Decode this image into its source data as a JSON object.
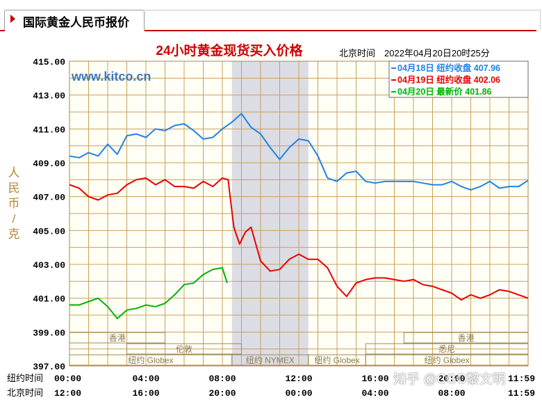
{
  "tab": {
    "title": "国际黄金人民币报价"
  },
  "watermark": "知乎 @CGC黎文明",
  "chart_data": {
    "type": "line",
    "title": "24小时黄金现货买入价格",
    "timestamp": "北京时间　2022年04月20日20时25分",
    "site": "www.kitco.cn",
    "ylabel": "人民币/克",
    "ylim": [
      397,
      415
    ],
    "y_ticks": [
      "415.00",
      "413.00",
      "411.00",
      "409.00",
      "407.00",
      "405.00",
      "403.00",
      "401.00",
      "399.00",
      "397.00"
    ],
    "xlim": [
      0,
      24
    ],
    "x_rows": [
      {
        "label": "纽约时间",
        "ticks": [
          "00:00",
          "04:00",
          "08:00",
          "12:00",
          "16:00",
          "20:00",
          "11:59"
        ]
      },
      {
        "label": "北京时间",
        "ticks": [
          "12:00",
          "16:00",
          "20:00",
          "00:00",
          "04:00",
          "08:00",
          "11:59"
        ]
      }
    ],
    "x_tick_positions": [
      0,
      4,
      8,
      12,
      16,
      20,
      24
    ],
    "legend_position": "top-right",
    "legend": [
      {
        "text": "04月18日  纽约收盘 407.96",
        "color": "#1e82e6"
      },
      {
        "text": "04月19日  纽约收盘 402.06",
        "color": "#e60000"
      },
      {
        "text": "04月20日    最新价 401.86",
        "color": "#00b400"
      }
    ],
    "shaded_range": [
      8.5,
      12.5
    ],
    "sessions": [
      {
        "label": "香港",
        "start": 0,
        "end": 5
      },
      {
        "label": "香港",
        "start": 17.5,
        "end": 24
      },
      {
        "label": "伦敦",
        "start": 3,
        "end": 9
      },
      {
        "label": "悉尼",
        "start": 15.5,
        "end": 24
      },
      {
        "label": "纽约 Globex",
        "start": 0,
        "end": 8.5
      },
      {
        "label": "纽约 NYMEX",
        "start": 8.5,
        "end": 12.5
      },
      {
        "label": "纽约 Globex",
        "start": 12.5,
        "end": 15.5
      },
      {
        "label": "纽约 Globex",
        "start": 15.5,
        "end": 24
      }
    ],
    "series": [
      {
        "name": "04月18日",
        "color": "#1e82e6",
        "x": [
          0,
          0.5,
          1,
          1.5,
          2,
          2.5,
          3,
          3.5,
          4,
          4.5,
          5,
          5.5,
          6,
          6.5,
          7,
          7.5,
          8,
          8.5,
          9,
          9.5,
          10,
          10.5,
          11,
          11.5,
          12,
          12.5,
          13,
          13.5,
          14,
          14.5,
          15,
          15.5,
          16,
          16.5,
          17,
          17.5,
          18,
          18.5,
          19,
          19.5,
          20,
          20.5,
          21,
          21.5,
          22,
          22.5,
          23,
          23.5,
          24
        ],
        "y": [
          409.4,
          409.3,
          409.6,
          409.4,
          410.1,
          409.5,
          410.6,
          410.7,
          410.5,
          411.0,
          410.9,
          411.2,
          411.3,
          410.9,
          410.4,
          410.5,
          411.0,
          411.4,
          411.9,
          411.1,
          410.7,
          409.9,
          409.2,
          409.9,
          410.4,
          410.3,
          409.4,
          408.1,
          407.9,
          408.4,
          408.5,
          407.9,
          407.8,
          407.9,
          407.9,
          407.9,
          407.9,
          407.8,
          407.7,
          407.7,
          407.9,
          407.6,
          407.4,
          407.6,
          407.9,
          407.5,
          407.6,
          407.6,
          407.96
        ]
      },
      {
        "name": "04月19日",
        "color": "#e60000",
        "x": [
          0,
          0.5,
          1,
          1.5,
          2,
          2.5,
          3,
          3.5,
          4,
          4.5,
          5,
          5.5,
          6,
          6.5,
          7,
          7.5,
          8,
          8.3,
          8.6,
          8.9,
          9.2,
          9.5,
          10,
          10.5,
          11,
          11.5,
          12,
          12.5,
          13,
          13.5,
          14,
          14.5,
          15,
          15.5,
          16,
          16.5,
          17,
          17.5,
          18,
          18.5,
          19,
          19.5,
          20,
          20.5,
          21,
          21.5,
          22,
          22.5,
          23,
          23.5,
          24
        ],
        "y": [
          407.7,
          407.5,
          407.0,
          406.8,
          407.1,
          407.2,
          407.7,
          408.0,
          408.1,
          407.7,
          408.0,
          407.6,
          407.6,
          407.5,
          407.9,
          407.6,
          408.1,
          408.0,
          405.2,
          404.2,
          404.9,
          405.2,
          403.2,
          402.6,
          402.7,
          403.3,
          403.6,
          403.3,
          403.3,
          402.8,
          401.7,
          401.1,
          401.9,
          402.1,
          402.2,
          402.2,
          402.1,
          402.0,
          402.1,
          401.8,
          401.7,
          401.5,
          401.3,
          400.9,
          401.2,
          401.0,
          401.2,
          401.5,
          401.4,
          401.2,
          401.0
        ]
      },
      {
        "name": "04月20日",
        "color": "#00b400",
        "x": [
          0,
          0.5,
          1,
          1.5,
          2,
          2.5,
          3,
          3.5,
          4,
          4.5,
          5,
          5.5,
          6,
          6.5,
          7,
          7.5,
          8,
          8.25
        ],
        "y": [
          400.6,
          400.6,
          400.8,
          401.0,
          400.5,
          399.8,
          400.3,
          400.4,
          400.6,
          400.5,
          400.7,
          401.2,
          401.8,
          401.9,
          402.4,
          402.7,
          402.8,
          401.9
        ]
      }
    ]
  }
}
